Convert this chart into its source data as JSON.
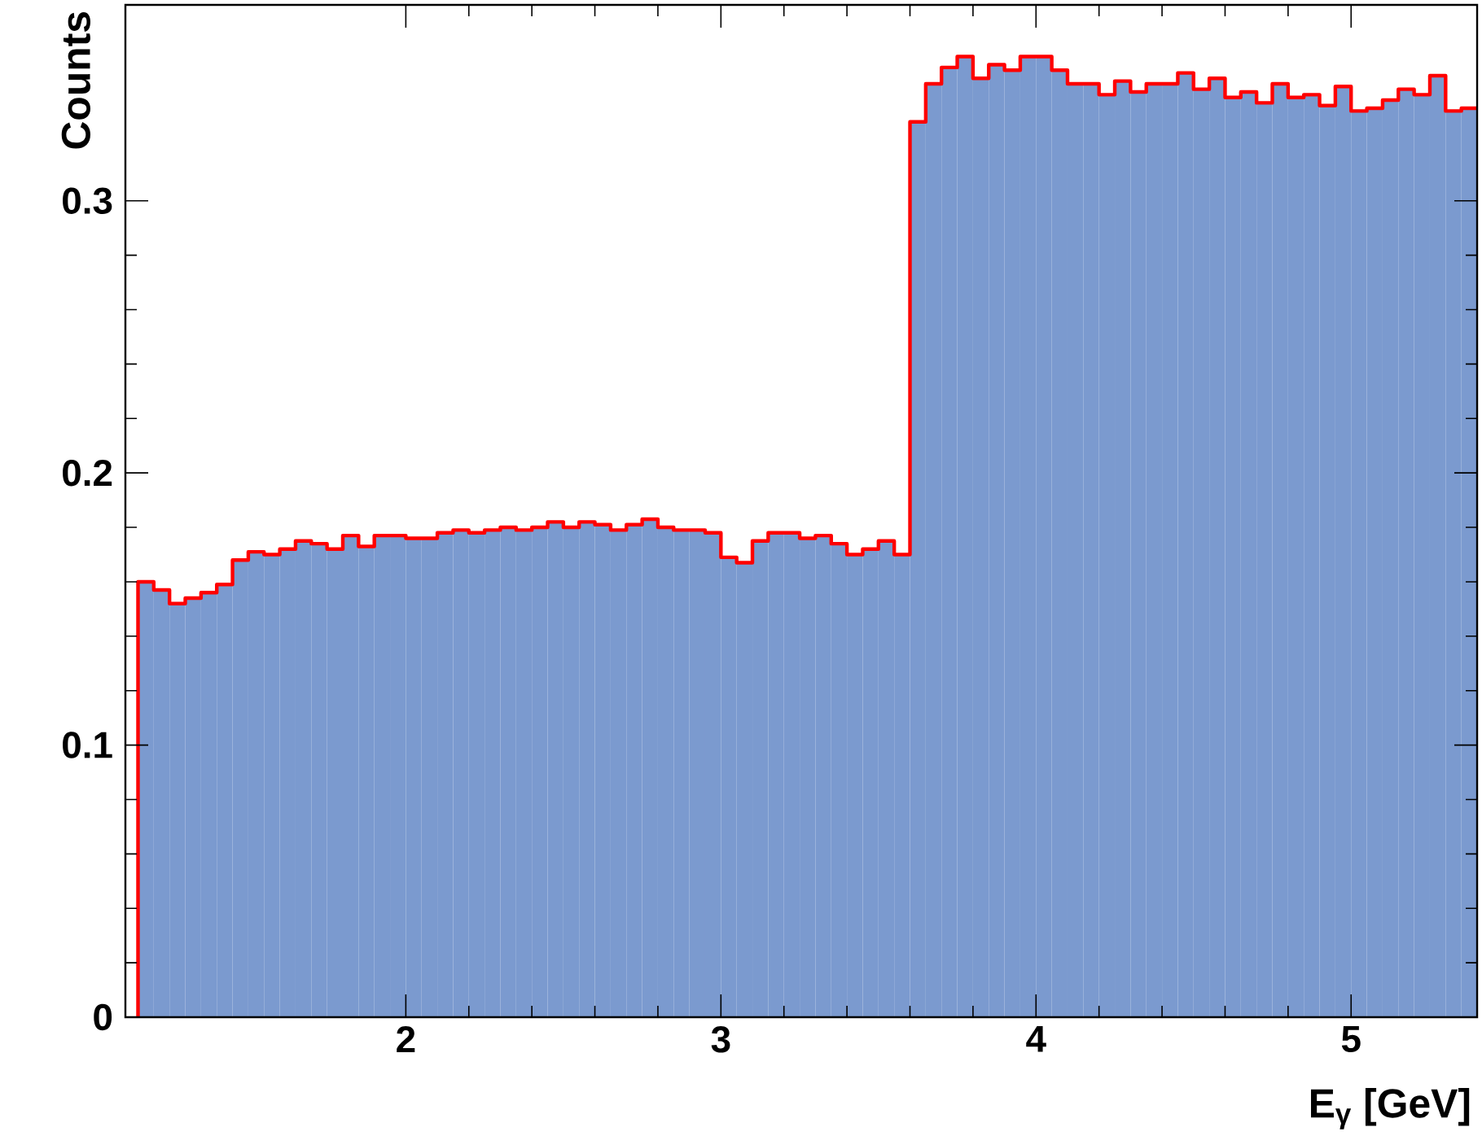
{
  "chart_data": {
    "type": "histogram",
    "xlabel": "E$_{γ}$ [GeV]",
    "ylabel": "Counts",
    "bins": [
      1.15,
      1.2,
      1.25,
      1.3,
      1.35,
      1.4,
      1.45,
      1.5,
      1.55,
      1.6,
      1.65,
      1.7,
      1.75,
      1.8,
      1.85,
      1.9,
      1.95,
      2.0,
      2.05,
      2.1,
      2.15,
      2.2,
      2.25,
      2.3,
      2.35,
      2.4,
      2.45,
      2.5,
      2.55,
      2.6,
      2.65,
      2.7,
      2.75,
      2.8,
      2.85,
      2.9,
      2.95,
      3.0,
      3.05,
      3.1,
      3.15,
      3.2,
      3.25,
      3.3,
      3.35,
      3.4,
      3.45,
      3.5,
      3.55,
      3.6,
      3.65,
      3.7,
      3.75,
      3.8,
      3.85,
      3.9,
      3.95,
      4.0,
      4.05,
      4.1,
      4.15,
      4.2,
      4.25,
      4.3,
      4.35,
      4.4,
      4.45,
      4.5,
      4.55,
      4.6,
      4.65,
      4.7,
      4.75,
      4.8,
      4.85,
      4.9,
      4.95,
      5.0,
      5.05,
      5.1,
      5.15,
      5.2,
      5.25,
      5.3,
      5.35,
      5.4
    ],
    "series": [
      {
        "color": "#7b9acf",
        "values": [
          0.16,
          0.157,
          0.152,
          0.154,
          0.156,
          0.159,
          0.168,
          0.171,
          0.17,
          0.172,
          0.175,
          0.174,
          0.172,
          0.177,
          0.173,
          0.177,
          0.177,
          0.176,
          0.176,
          0.178,
          0.179,
          0.178,
          0.179,
          0.18,
          0.179,
          0.18,
          0.182,
          0.18,
          0.182,
          0.181,
          0.179,
          0.181,
          0.183,
          0.18,
          0.179,
          0.179,
          0.178,
          0.169,
          0.167,
          0.175,
          0.178,
          0.178,
          0.176,
          0.177,
          0.174,
          0.17,
          0.172,
          0.175,
          0.17,
          0.329,
          0.343,
          0.349,
          0.353,
          0.345,
          0.35,
          0.348,
          0.353,
          0.353,
          0.348,
          0.343,
          0.343,
          0.339,
          0.344,
          0.34,
          0.343,
          0.343,
          0.347,
          0.341,
          0.345,
          0.338,
          0.34,
          0.336,
          0.343,
          0.338,
          0.339,
          0.335,
          0.342,
          0.333,
          0.334,
          0.337,
          0.341,
          0.339,
          0.346,
          0.333,
          0.334
        ]
      },
      {
        "type": "step",
        "color": "#ff0000",
        "x": [
          1.15,
          1.15,
          1.2,
          1.25,
          1.3,
          1.35,
          1.4,
          1.45,
          1.5,
          1.55,
          1.6,
          1.65,
          1.7,
          1.75,
          1.8,
          1.85,
          1.9,
          1.95,
          2.0,
          2.05,
          2.1,
          2.15,
          2.2,
          2.25,
          2.3,
          2.35,
          2.4,
          2.45,
          2.5,
          2.55,
          2.6,
          2.65,
          2.7,
          2.75,
          2.8,
          2.85,
          2.9,
          2.95,
          3.0,
          3.05,
          3.1,
          3.15,
          3.2,
          3.25,
          3.3,
          3.35,
          3.4,
          3.45,
          3.5,
          3.55,
          3.6,
          3.65,
          3.7,
          3.75,
          3.8,
          3.85,
          3.9,
          3.95,
          4.0,
          4.05,
          4.1,
          4.15,
          4.2,
          4.25,
          4.3,
          4.35,
          4.4,
          4.45,
          4.5,
          4.55,
          4.6,
          4.65,
          4.7,
          4.75,
          4.8,
          4.85,
          4.9,
          4.95,
          5.0,
          5.05,
          5.1,
          5.15,
          5.2,
          5.25,
          5.3,
          5.35,
          5.4
        ],
        "values": [
          0,
          0.16,
          0.157,
          0.152,
          0.154,
          0.156,
          0.159,
          0.168,
          0.171,
          0.17,
          0.172,
          0.175,
          0.174,
          0.172,
          0.177,
          0.173,
          0.177,
          0.177,
          0.176,
          0.176,
          0.178,
          0.179,
          0.178,
          0.179,
          0.18,
          0.179,
          0.18,
          0.182,
          0.18,
          0.182,
          0.181,
          0.179,
          0.181,
          0.183,
          0.18,
          0.179,
          0.179,
          0.178,
          0.169,
          0.167,
          0.175,
          0.178,
          0.178,
          0.176,
          0.177,
          0.174,
          0.17,
          0.172,
          0.175,
          0.17,
          0.329,
          0.343,
          0.349,
          0.353,
          0.345,
          0.35,
          0.348,
          0.353,
          0.353,
          0.348,
          0.343,
          0.343,
          0.339,
          0.344,
          0.34,
          0.343,
          0.343,
          0.347,
          0.341,
          0.345,
          0.338,
          0.34,
          0.336,
          0.343,
          0.338,
          0.339,
          0.335,
          0.342,
          0.333,
          0.334,
          0.337,
          0.341,
          0.339,
          0.346,
          0.333,
          0.334,
          0.334
        ]
      }
    ],
    "xlim": [
      1.11,
      5.4
    ],
    "ylim": [
      0,
      0.372
    ],
    "xticks": [
      2,
      3,
      4,
      5
    ],
    "yticks": [
      0,
      0.1,
      0.2,
      0.3
    ]
  }
}
